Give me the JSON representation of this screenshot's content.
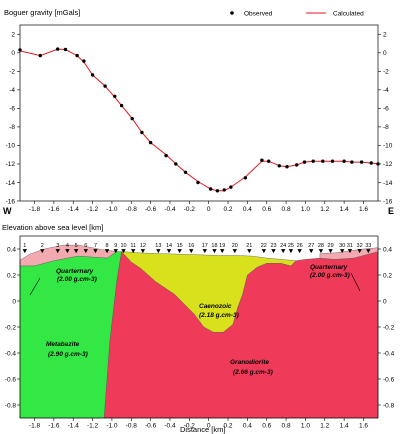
{
  "chart_data": [
    {
      "type": "line",
      "title": "",
      "ylabel": "Boguer gravity [mGals]",
      "xlabel": "",
      "direction_labels": {
        "left": "W",
        "right": "E"
      },
      "legend": {
        "position": "top-right"
      },
      "xlim": [
        -1.95,
        1.75
      ],
      "ylim": [
        -16,
        3
      ],
      "x_ticks": [
        "-1.8",
        "-1.6",
        "-1.4",
        "-1.2",
        "-1.0",
        "-0.8",
        "-0.6",
        "-0.4",
        "-0.2",
        "0",
        "0.2",
        "0.4",
        "0.6",
        "0.8",
        "1.0",
        "1.2",
        "1.4",
        "1.6"
      ],
      "y_ticks": [
        "2",
        "0",
        "-2",
        "-4",
        "-6",
        "-8",
        "-10",
        "-12",
        "-14",
        "-16"
      ],
      "series": [
        {
          "name": "Observed",
          "marker": "dot",
          "color": "#000000",
          "x": [
            -1.95,
            -1.74,
            -1.56,
            -1.48,
            -1.36,
            -1.29,
            -1.2,
            -1.07,
            -0.97,
            -0.9,
            -0.79,
            -0.69,
            -0.6,
            -0.44,
            -0.34,
            -0.24,
            -0.11,
            0.02,
            0.09,
            0.16,
            0.23,
            0.38,
            0.55,
            0.62,
            0.73,
            0.81,
            0.91,
            0.99,
            1.08,
            1.18,
            1.28,
            1.4,
            1.48,
            1.58,
            1.68,
            1.75
          ],
          "y": [
            0.3,
            -0.3,
            0.4,
            0.35,
            -0.3,
            -0.9,
            -2.4,
            -3.6,
            -4.7,
            -5.7,
            -7.1,
            -8.6,
            -9.7,
            -11.1,
            -12.0,
            -12.9,
            -14.0,
            -14.7,
            -14.9,
            -14.8,
            -14.5,
            -13.5,
            -11.6,
            -11.7,
            -12.2,
            -12.3,
            -12.1,
            -11.8,
            -11.7,
            -11.7,
            -11.7,
            -11.7,
            -11.8,
            -11.8,
            -11.9,
            -12.0
          ]
        },
        {
          "name": "Calculated",
          "marker": "line",
          "color": "#e8191e",
          "x": [
            -1.95,
            -1.74,
            -1.56,
            -1.48,
            -1.36,
            -1.29,
            -1.2,
            -1.07,
            -0.97,
            -0.9,
            -0.79,
            -0.69,
            -0.6,
            -0.44,
            -0.34,
            -0.24,
            -0.11,
            0.02,
            0.09,
            0.16,
            0.23,
            0.38,
            0.55,
            0.62,
            0.73,
            0.81,
            0.91,
            0.99,
            1.08,
            1.18,
            1.28,
            1.4,
            1.48,
            1.58,
            1.68,
            1.75
          ],
          "y": [
            0.2,
            -0.3,
            0.4,
            0.35,
            -0.3,
            -1.0,
            -2.4,
            -3.6,
            -4.8,
            -5.7,
            -7.1,
            -8.6,
            -9.7,
            -11.0,
            -12.0,
            -12.9,
            -13.9,
            -14.7,
            -14.9,
            -14.9,
            -14.5,
            -13.4,
            -11.7,
            -11.7,
            -12.2,
            -12.3,
            -12.1,
            -11.8,
            -11.7,
            -11.7,
            -11.7,
            -11.7,
            -11.8,
            -11.8,
            -11.9,
            -12.0
          ]
        }
      ]
    },
    {
      "type": "area",
      "title": "",
      "ylabel": "Elevation above sea level [km]",
      "xlabel": "Distance [km]",
      "xlim": [
        -1.95,
        1.75
      ],
      "ylim": [
        -0.9,
        0.5
      ],
      "x_ticks": [
        "-1.8",
        "-1.6",
        "-1.4",
        "-1.2",
        "-1.0",
        "-0.8",
        "-0.6",
        "-0.4",
        "-0.2",
        "0",
        "0.2",
        "0.4",
        "0.6",
        "0.8",
        "1.0",
        "1.2",
        "1.4",
        "1.6"
      ],
      "y_ticks": [
        "0.4",
        "0.2",
        "0",
        "-0.2",
        "-0.4",
        "-0.6",
        "-0.8"
      ],
      "units": [
        {
          "name": "Quarternary",
          "density": "(2.00 g.cm-3)",
          "color": "#f2aab0",
          "polygon": [
            [
              -1.95,
              0.315
            ],
            [
              -1.85,
              0.36
            ],
            [
              -1.7,
              0.4
            ],
            [
              -1.5,
              0.43
            ],
            [
              -1.35,
              0.43
            ],
            [
              -1.2,
              0.41
            ],
            [
              -1.1,
              0.395
            ],
            [
              -1.0,
              0.385
            ],
            [
              -0.95,
              0.38
            ],
            [
              -1.05,
              0.33
            ],
            [
              -1.35,
              0.345
            ],
            [
              -1.6,
              0.31
            ],
            [
              -1.8,
              0.27
            ],
            [
              -1.95,
              0.27
            ]
          ]
        },
        {
          "name": "Quarternary",
          "density": "(2.00 g.cm-3)",
          "color": "#f2aab0",
          "polygon": [
            [
              1.15,
              0.365
            ],
            [
              1.3,
              0.37
            ],
            [
              1.5,
              0.39
            ],
            [
              1.6,
              0.4
            ],
            [
              1.75,
              0.41
            ],
            [
              1.75,
              0.38
            ],
            [
              1.5,
              0.33
            ],
            [
              1.3,
              0.32
            ],
            [
              1.15,
              0.33
            ]
          ]
        },
        {
          "name": "Metabazite",
          "density": "(2.90 g.cm-3)",
          "color": "#33e844",
          "polygon": [
            [
              -1.95,
              0.27
            ],
            [
              -1.8,
              0.27
            ],
            [
              -1.6,
              0.31
            ],
            [
              -1.35,
              0.345
            ],
            [
              -1.05,
              0.33
            ],
            [
              -0.95,
              0.38
            ],
            [
              -0.9,
              0.38
            ],
            [
              -0.95,
              0.15
            ],
            [
              -1.02,
              -0.3
            ],
            [
              -1.05,
              -0.6
            ],
            [
              -1.08,
              -0.9
            ],
            [
              -1.95,
              -0.9
            ]
          ]
        },
        {
          "name": "Caenozoic",
          "density": "(2.18 g.cm-3)",
          "color": "#d9e11c",
          "polygon": [
            [
              -0.9,
              0.38
            ],
            [
              -0.7,
              0.37
            ],
            [
              -0.5,
              0.365
            ],
            [
              -0.3,
              0.36
            ],
            [
              -0.1,
              0.355
            ],
            [
              0.1,
              0.35
            ],
            [
              0.3,
              0.35
            ],
            [
              0.45,
              0.345
            ],
            [
              0.6,
              0.33
            ],
            [
              0.75,
              0.32
            ],
            [
              0.9,
              0.31
            ],
            [
              0.85,
              0.27
            ],
            [
              0.75,
              0.29
            ],
            [
              0.6,
              0.29
            ],
            [
              0.5,
              0.26
            ],
            [
              0.4,
              0.2
            ],
            [
              0.35,
              0.05
            ],
            [
              0.3,
              -0.05
            ],
            [
              0.25,
              -0.18
            ],
            [
              0.15,
              -0.24
            ],
            [
              0.05,
              -0.24
            ],
            [
              -0.05,
              -0.2
            ],
            [
              -0.15,
              -0.1
            ],
            [
              -0.35,
              0.05
            ],
            [
              -0.55,
              0.15
            ],
            [
              -0.7,
              0.25
            ],
            [
              -0.8,
              0.3
            ]
          ]
        },
        {
          "name": "Granodiorite",
          "density": "(2.66 g.cm-3)",
          "color": "#f03a5a",
          "polygon": [
            [
              -0.9,
              0.38
            ],
            [
              -0.8,
              0.3
            ],
            [
              -0.7,
              0.25
            ],
            [
              -0.55,
              0.15
            ],
            [
              -0.35,
              0.05
            ],
            [
              -0.15,
              -0.1
            ],
            [
              -0.05,
              -0.2
            ],
            [
              0.05,
              -0.24
            ],
            [
              0.15,
              -0.24
            ],
            [
              0.25,
              -0.18
            ],
            [
              0.3,
              -0.05
            ],
            [
              0.35,
              0.05
            ],
            [
              0.4,
              0.2
            ],
            [
              0.5,
              0.26
            ],
            [
              0.6,
              0.29
            ],
            [
              0.75,
              0.29
            ],
            [
              0.85,
              0.27
            ],
            [
              0.9,
              0.31
            ],
            [
              1.0,
              0.32
            ],
            [
              1.15,
              0.33
            ],
            [
              1.3,
              0.32
            ],
            [
              1.5,
              0.33
            ],
            [
              1.75,
              0.38
            ],
            [
              1.75,
              -0.9
            ],
            [
              -1.08,
              -0.9
            ],
            [
              -1.05,
              -0.6
            ],
            [
              -1.02,
              -0.3
            ],
            [
              -0.95,
              0.15
            ]
          ]
        }
      ],
      "stations": {
        "labels": [
          "1",
          "2",
          "3",
          "4",
          "5",
          "6",
          "7",
          "8",
          "9",
          "10",
          "11",
          "12",
          "13",
          "14",
          "15",
          "16",
          "17",
          "18",
          "19",
          "20",
          "21",
          "22",
          "23",
          "24",
          "25",
          "26",
          "27",
          "28",
          "29",
          "30",
          "31",
          "32",
          "33"
        ],
        "x": [
          -1.9,
          -1.72,
          -1.56,
          -1.46,
          -1.37,
          -1.27,
          -1.17,
          -1.05,
          -0.96,
          -0.88,
          -0.78,
          -0.68,
          -0.52,
          -0.41,
          -0.3,
          -0.18,
          -0.04,
          0.06,
          0.14,
          0.27,
          0.42,
          0.57,
          0.67,
          0.77,
          0.85,
          0.94,
          1.06,
          1.16,
          1.26,
          1.38,
          1.46,
          1.56,
          1.65
        ]
      }
    }
  ]
}
